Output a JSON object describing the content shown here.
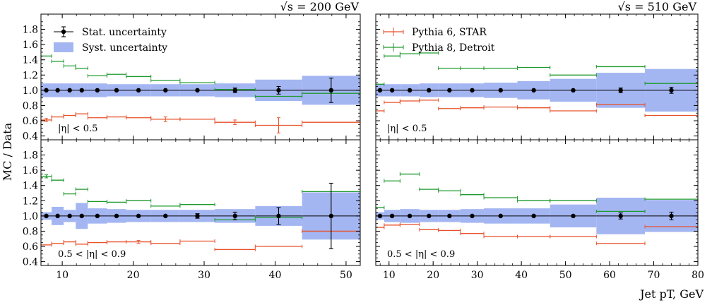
{
  "figure": {
    "ylabel": "MC / Data",
    "xlabel": "Jet pT, GeV",
    "legend": [
      {
        "label": "Stat. uncertainty",
        "kind": "stat"
      },
      {
        "label": "Syst. uncertainty",
        "kind": "syst"
      },
      {
        "label": "Pythia 6, STAR",
        "kind": "p6"
      },
      {
        "label": "Pythia 8, Detroit",
        "kind": "p8"
      }
    ]
  },
  "colors": {
    "syst": "#a4b6f2",
    "pythia6": "#e8512a",
    "pythia8": "#1e9a2e",
    "data": "#000000"
  },
  "chart_data": [
    {
      "type": "scatter",
      "title": "√s = 200 GeV",
      "region": "|η| < 0.5",
      "xlim": [
        7,
        52
      ],
      "ylim": [
        0.35,
        2.0
      ],
      "xticks": [
        10,
        20,
        30,
        40,
        50
      ],
      "yticks": [
        0.4,
        0.6,
        0.8,
        1.0,
        1.2,
        1.4,
        1.6,
        1.8
      ],
      "bins": [
        7.0,
        8.5,
        10.2,
        11.9,
        13.6,
        16.3,
        19.0,
        22.5,
        26.6,
        31.5,
        37.2,
        43.8,
        52.0
      ],
      "data": {
        "y": [
          1.0,
          1.0,
          1.0,
          1.0,
          1.0,
          1.0,
          1.0,
          1.0,
          1.0,
          1.0,
          1.0,
          1.0
        ],
        "stat": [
          0.01,
          0.01,
          0.01,
          0.01,
          0.01,
          0.01,
          0.01,
          0.01,
          0.01,
          0.03,
          0.05,
          0.16
        ]
      },
      "syst": [
        0.09,
        0.09,
        0.09,
        0.09,
        0.09,
        0.08,
        0.08,
        0.08,
        0.08,
        0.09,
        0.14,
        0.19
      ],
      "series": [
        {
          "name": "Pythia 6, STAR",
          "values": [
            0.61,
            0.65,
            0.67,
            0.69,
            0.64,
            0.65,
            0.64,
            0.62,
            0.62,
            0.58,
            0.54,
            0.58
          ],
          "err": [
            0.02,
            0.01,
            0.01,
            0.01,
            0.01,
            0.01,
            0.01,
            0.03,
            0.01,
            0.03,
            0.1,
            0.01
          ]
        },
        {
          "name": "Pythia 8, Detroit",
          "values": [
            1.45,
            1.38,
            1.32,
            1.29,
            1.19,
            1.21,
            1.18,
            1.13,
            1.1,
            1.01,
            0.92,
            0.96
          ],
          "err": [
            0.01,
            0.01,
            0.01,
            0.01,
            0.01,
            0.01,
            0.01,
            0.01,
            0.01,
            0.01,
            0.01,
            0.01
          ]
        }
      ]
    },
    {
      "type": "scatter",
      "title": "√s = 510 GeV",
      "region": "|η| < 0.5",
      "xlim": [
        7,
        80
      ],
      "ylim": [
        0.35,
        2.0
      ],
      "xticks": [
        10,
        20,
        30,
        40,
        50,
        60,
        70,
        80
      ],
      "yticks": [
        0.4,
        0.6,
        0.8,
        1.0,
        1.2,
        1.4,
        1.6,
        1.8
      ],
      "bins": [
        7.0,
        8.9,
        12.5,
        16.9,
        21.2,
        26.2,
        31.5,
        39.1,
        46.5,
        57.0,
        68.0,
        80.0
      ],
      "data": {
        "y": [
          1.0,
          1.0,
          1.0,
          1.0,
          1.0,
          1.0,
          1.0,
          1.0,
          1.0,
          1.0,
          1.0
        ],
        "stat": [
          0.01,
          0.01,
          0.01,
          0.01,
          0.01,
          0.01,
          0.01,
          0.01,
          0.01,
          0.03,
          0.04
        ]
      },
      "syst": [
        0.08,
        0.08,
        0.08,
        0.09,
        0.09,
        0.09,
        0.1,
        0.12,
        0.15,
        0.23,
        0.28
      ],
      "series": [
        {
          "name": "Pythia 6, STAR",
          "values": [
            0.73,
            0.84,
            0.86,
            0.87,
            0.76,
            0.77,
            0.78,
            0.77,
            0.73,
            0.81,
            0.67
          ],
          "err": [
            0.01,
            0.01,
            0.01,
            0.01,
            0.01,
            0.01,
            0.01,
            0.01,
            0.01,
            0.01,
            0.01
          ]
        },
        {
          "name": "Pythia 8, Detroit",
          "values": [
            1.08,
            1.45,
            1.48,
            1.49,
            1.29,
            1.29,
            1.29,
            1.3,
            1.2,
            1.31,
            1.09
          ],
          "err": [
            0.01,
            0.01,
            0.01,
            0.01,
            0.01,
            0.01,
            0.01,
            0.01,
            0.01,
            0.01,
            0.01
          ]
        }
      ]
    },
    {
      "type": "scatter",
      "title": "",
      "region": "0.5 < |η| < 0.9",
      "xlim": [
        7,
        52
      ],
      "ylim": [
        0.35,
        2.0
      ],
      "xticks": [
        10,
        20,
        30,
        40,
        50
      ],
      "yticks": [
        0.4,
        0.6,
        0.8,
        1.0,
        1.2,
        1.4,
        1.6,
        1.8
      ],
      "bins": [
        7.0,
        8.5,
        10.2,
        11.9,
        13.6,
        16.3,
        19.0,
        22.5,
        26.6,
        31.5,
        37.2,
        43.8,
        52.0
      ],
      "data": {
        "y": [
          1.0,
          1.0,
          1.0,
          1.0,
          1.0,
          1.0,
          1.0,
          1.0,
          1.0,
          1.0,
          1.0,
          1.0
        ],
        "stat": [
          0.01,
          0.01,
          0.01,
          0.01,
          0.01,
          0.01,
          0.01,
          0.01,
          0.03,
          0.05,
          0.11,
          0.43
        ]
      },
      "syst": [
        0.05,
        0.12,
        0.08,
        0.17,
        0.1,
        0.09,
        0.08,
        0.08,
        0.08,
        0.09,
        0.13,
        0.31
      ],
      "series": [
        {
          "name": "Pythia 6, STAR",
          "values": [
            0.62,
            0.64,
            0.66,
            0.63,
            0.65,
            0.66,
            0.66,
            0.64,
            0.67,
            0.56,
            0.6,
            0.8
          ],
          "err": [
            0.01,
            0.01,
            0.01,
            0.01,
            0.01,
            0.01,
            0.02,
            0.01,
            0.01,
            0.01,
            0.01,
            0.01
          ]
        },
        {
          "name": "Pythia 8, Detroit",
          "values": [
            1.52,
            1.47,
            1.29,
            1.35,
            1.19,
            1.18,
            1.2,
            1.13,
            1.15,
            0.95,
            0.98,
            1.32
          ],
          "err": [
            0.02,
            0.01,
            0.01,
            0.01,
            0.01,
            0.01,
            0.01,
            0.01,
            0.01,
            0.01,
            0.01,
            0.01
          ]
        }
      ]
    },
    {
      "type": "scatter",
      "title": "",
      "region": "0.5 < |η| < 0.9",
      "xlim": [
        7,
        80
      ],
      "ylim": [
        0.35,
        2.0
      ],
      "xticks": [
        10,
        20,
        30,
        40,
        50,
        60,
        70,
        80
      ],
      "yticks": [
        0.4,
        0.6,
        0.8,
        1.0,
        1.2,
        1.4,
        1.6,
        1.8
      ],
      "bins": [
        7.0,
        8.9,
        12.5,
        16.9,
        21.2,
        26.2,
        31.5,
        39.1,
        46.5,
        57.0,
        68.0,
        80.0
      ],
      "data": {
        "y": [
          1.0,
          1.0,
          1.0,
          1.0,
          1.0,
          1.0,
          1.0,
          1.0,
          1.0,
          1.0,
          1.0
        ],
        "stat": [
          0.01,
          0.01,
          0.01,
          0.01,
          0.01,
          0.01,
          0.01,
          0.01,
          0.01,
          0.04,
          0.05
        ]
      },
      "syst": [
        0.05,
        0.08,
        0.09,
        0.08,
        0.08,
        0.09,
        0.1,
        0.1,
        0.15,
        0.24,
        0.21
      ],
      "series": [
        {
          "name": "Pythia 6, STAR",
          "values": [
            0.85,
            0.88,
            0.89,
            0.82,
            0.81,
            0.77,
            0.73,
            0.73,
            0.73,
            0.64,
            0.86
          ],
          "err": [
            0.01,
            0.01,
            0.01,
            0.01,
            0.01,
            0.01,
            0.01,
            0.01,
            0.01,
            0.01,
            0.01
          ]
        },
        {
          "name": "Pythia 8, Detroit",
          "values": [
            1.11,
            1.46,
            1.55,
            1.35,
            1.33,
            1.28,
            1.24,
            1.2,
            1.2,
            1.06,
            1.22
          ],
          "err": [
            0.01,
            0.01,
            0.01,
            0.01,
            0.01,
            0.01,
            0.01,
            0.01,
            0.01,
            0.01,
            0.01
          ]
        }
      ]
    }
  ]
}
